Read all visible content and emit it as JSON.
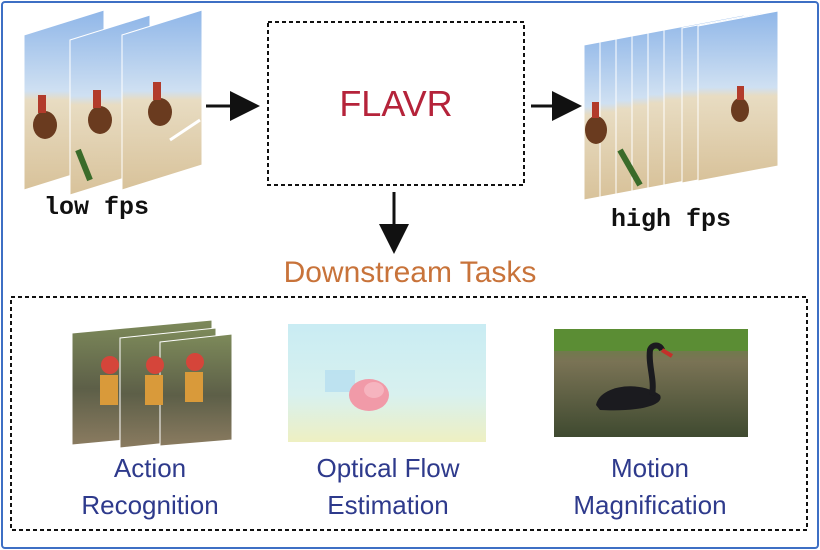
{
  "model": {
    "name": "FLAVR"
  },
  "input": {
    "label": "low fps"
  },
  "output": {
    "label": "high fps"
  },
  "downstream": {
    "title": "Downstream Tasks"
  },
  "tasks": [
    {
      "line1": "Action",
      "line2": "Recognition"
    },
    {
      "line1": "Optical Flow",
      "line2": "Estimation"
    },
    {
      "line1": "Motion",
      "line2": "Magnification"
    }
  ],
  "colors": {
    "border": "#3d6fc4",
    "model_text": "#b5233a",
    "downstream_text": "#c8733a",
    "task_text": "#2e3a8c"
  },
  "icons": [
    "horse-jump-frame-stack",
    "action-frame-stack",
    "optical-flow-map",
    "swan-image",
    "right-arrow",
    "down-arrow"
  ]
}
